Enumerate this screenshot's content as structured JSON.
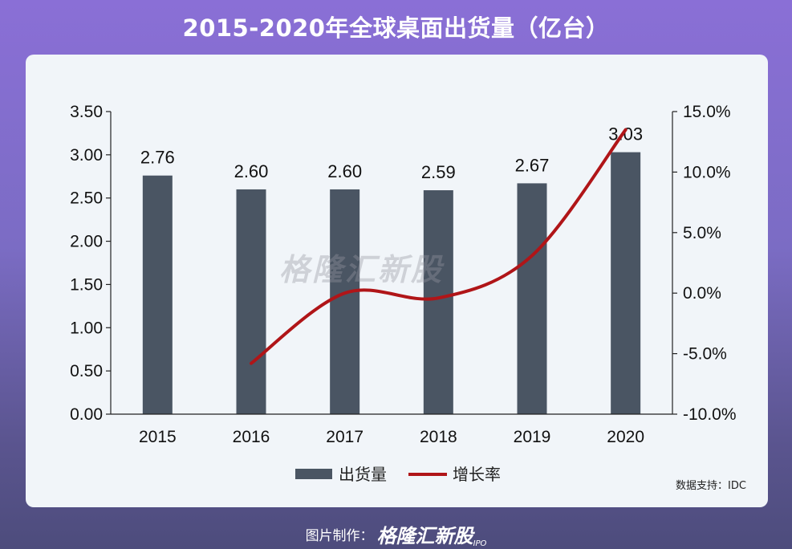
{
  "title": "2015-2020年全球桌面出货量（亿台）",
  "source": "数据支持：IDC",
  "footer": {
    "credit": "图片制作：",
    "brand": "格隆汇新股",
    "ipo": "IPO"
  },
  "watermark": "格隆汇新股",
  "colors": {
    "bar": "#4a5563",
    "line": "#b01518",
    "card": "#f1f5f9"
  },
  "chart_data": {
    "type": "bar",
    "categories": [
      "2015",
      "2016",
      "2017",
      "2018",
      "2019",
      "2020"
    ],
    "series": [
      {
        "name": "出货量",
        "type": "bar",
        "axis": "left",
        "values": [
          2.76,
          2.6,
          2.6,
          2.59,
          2.67,
          3.03
        ],
        "labels": [
          "2.76",
          "2.60",
          "2.60",
          "2.59",
          "2.67",
          "3.03"
        ]
      },
      {
        "name": "增长率",
        "type": "line",
        "axis": "right",
        "values": [
          null,
          -5.8,
          0.0,
          -0.4,
          3.1,
          13.5
        ]
      }
    ],
    "left_axis": {
      "ylim": [
        0,
        3.5
      ],
      "ticks": [
        "0.00",
        "0.50",
        "1.00",
        "1.50",
        "2.00",
        "2.50",
        "3.00",
        "3.50"
      ]
    },
    "right_axis": {
      "ylim": [
        -10,
        15
      ],
      "ticks": [
        "-10.0%",
        "-5.0%",
        "0.0%",
        "5.0%",
        "10.0%",
        "15.0%"
      ]
    },
    "legend": "bottom",
    "grid": false
  }
}
